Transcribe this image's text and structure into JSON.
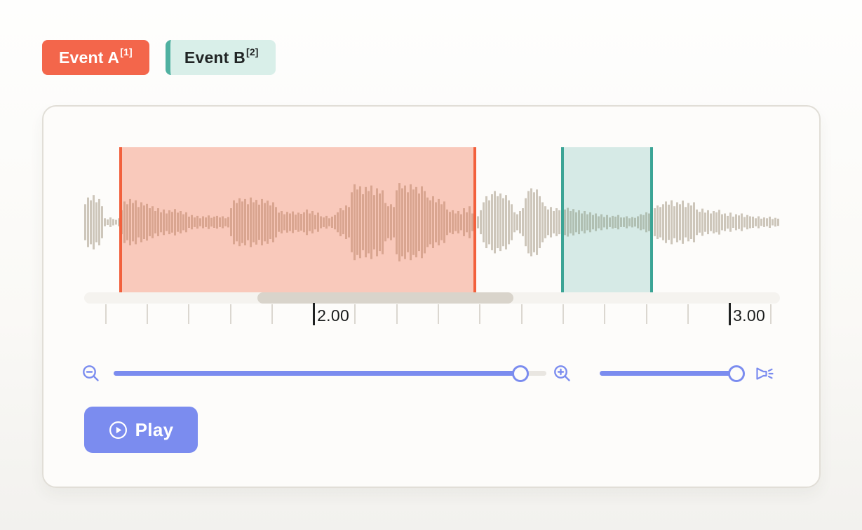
{
  "event_labels": [
    {
      "name": "Event A",
      "sup": "[1]"
    },
    {
      "name": "Event B",
      "sup": "[2]"
    }
  ],
  "timeline": {
    "view_start": 1.45,
    "view_end": 3.123,
    "minor_tick_step": 0.1,
    "first_tick": 1.5,
    "labeled_ticks": [
      {
        "time": 2.0,
        "label": "2.00"
      },
      {
        "time": 3.0,
        "label": "3.00"
      }
    ]
  },
  "regions": [
    {
      "event": "Event A",
      "start": 1.537,
      "end": 2.389,
      "fill": "rgba(242,96,60,0.33)",
      "border": "#f2603c"
    },
    {
      "event": "Event B",
      "start": 2.6,
      "end": 2.815,
      "fill": "rgba(59,164,149,0.2)",
      "border": "#3ba495"
    }
  ],
  "scrollbar": {
    "thumb_start": 0.249,
    "thumb_end": 0.617
  },
  "sliders": {
    "zoom": {
      "value": 0.94
    },
    "volume": {
      "value": 0.942
    }
  },
  "buttons": {
    "play": "Play"
  },
  "icons": {
    "zoom_out": "magnifier-minus",
    "zoom_in": "magnifier-plus",
    "volume": "speaker-with-waves",
    "play": "circled-play-triangle"
  },
  "colors": {
    "coral": "#f3664b",
    "coral_line": "#f2603c",
    "teal": "#50b1a1",
    "teal_line": "#3ba495",
    "teal_chip_bg": "#d9efe9",
    "accent_blue": "#7b8cef",
    "waveform": "#cdc6ba",
    "card_bg": "#fdfcfa",
    "scroll_thumb": "#d9d4cb"
  },
  "waveform": {
    "amplitudes": [
      0.45,
      0.62,
      0.55,
      0.68,
      0.5,
      0.58,
      0.4,
      0.1,
      0.07,
      0.12,
      0.08,
      0.06,
      0.1,
      0.3,
      0.52,
      0.45,
      0.58,
      0.48,
      0.55,
      0.38,
      0.5,
      0.42,
      0.46,
      0.35,
      0.4,
      0.28,
      0.35,
      0.25,
      0.32,
      0.22,
      0.3,
      0.26,
      0.33,
      0.24,
      0.28,
      0.2,
      0.25,
      0.14,
      0.18,
      0.12,
      0.16,
      0.1,
      0.15,
      0.12,
      0.17,
      0.11,
      0.14,
      0.16,
      0.12,
      0.15,
      0.1,
      0.13,
      0.35,
      0.55,
      0.48,
      0.6,
      0.52,
      0.58,
      0.45,
      0.62,
      0.5,
      0.56,
      0.44,
      0.58,
      0.48,
      0.54,
      0.42,
      0.5,
      0.38,
      0.24,
      0.28,
      0.2,
      0.26,
      0.22,
      0.27,
      0.19,
      0.24,
      0.21,
      0.25,
      0.32,
      0.22,
      0.28,
      0.18,
      0.24,
      0.15,
      0.12,
      0.16,
      0.1,
      0.14,
      0.18,
      0.25,
      0.35,
      0.3,
      0.42,
      0.38,
      0.75,
      0.95,
      0.82,
      0.9,
      0.7,
      0.88,
      0.78,
      0.92,
      0.68,
      0.85,
      0.72,
      0.8,
      0.48,
      0.4,
      0.45,
      0.38,
      0.8,
      0.98,
      0.85,
      0.92,
      0.75,
      0.95,
      0.82,
      0.88,
      0.72,
      0.9,
      0.78,
      0.62,
      0.55,
      0.65,
      0.5,
      0.58,
      0.45,
      0.52,
      0.32,
      0.26,
      0.3,
      0.22,
      0.28,
      0.2,
      0.35,
      0.25,
      0.4,
      0.22,
      0.18,
      0.15,
      0.3,
      0.5,
      0.65,
      0.55,
      0.7,
      0.78,
      0.65,
      0.72,
      0.6,
      0.68,
      0.55,
      0.45,
      0.25,
      0.2,
      0.28,
      0.35,
      0.6,
      0.78,
      0.85,
      0.75,
      0.82,
      0.65,
      0.5,
      0.4,
      0.32,
      0.38,
      0.28,
      0.35,
      0.3,
      0.38,
      0.32,
      0.36,
      0.28,
      0.33,
      0.25,
      0.3,
      0.22,
      0.28,
      0.2,
      0.25,
      0.18,
      0.22,
      0.15,
      0.2,
      0.13,
      0.18,
      0.12,
      0.16,
      0.14,
      0.18,
      0.12,
      0.12,
      0.15,
      0.1,
      0.13,
      0.11,
      0.15,
      0.2,
      0.18,
      0.25,
      0.22,
      0.3,
      0.35,
      0.42,
      0.38,
      0.45,
      0.52,
      0.44,
      0.55,
      0.4,
      0.5,
      0.45,
      0.54,
      0.38,
      0.48,
      0.42,
      0.5,
      0.32,
      0.26,
      0.34,
      0.24,
      0.3,
      0.22,
      0.28,
      0.25,
      0.31,
      0.2,
      0.22,
      0.16,
      0.24,
      0.14,
      0.2,
      0.17,
      0.22,
      0.13,
      0.18,
      0.15,
      0.14,
      0.1,
      0.15,
      0.09,
      0.12,
      0.1,
      0.14,
      0.08,
      0.11,
      0.09
    ]
  }
}
